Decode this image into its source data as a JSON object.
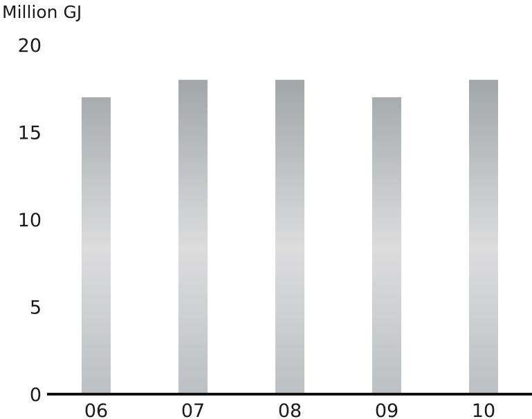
{
  "chart_data": {
    "type": "bar",
    "title": "",
    "ylabel": "Million GJ",
    "xlabel": "",
    "categories": [
      "06",
      "07",
      "08",
      "09",
      "10"
    ],
    "values": [
      17,
      18,
      18,
      17,
      18
    ],
    "ylim": [
      0,
      20
    ],
    "yticks": [
      "0",
      "5",
      "10",
      "15",
      "20"
    ],
    "grid": false,
    "colors": {
      "bar_top": "#959b9d",
      "bar_mid": "#dcdcdd",
      "bar_bottom": "#bcc0c2",
      "axis": "#111111"
    }
  }
}
